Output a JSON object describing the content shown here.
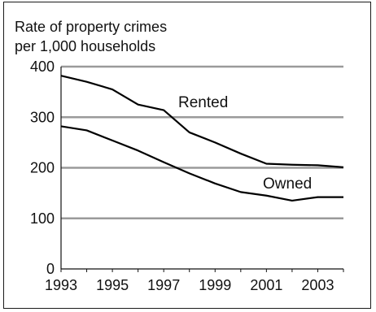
{
  "chart_data": {
    "type": "line",
    "title_lines": [
      "Rate of property crimes",
      "per 1,000 households"
    ],
    "xlabel": "",
    "ylabel": "",
    "x": [
      1993,
      1994,
      1995,
      1996,
      1997,
      1998,
      1999,
      2000,
      2001,
      2002,
      2003,
      2004
    ],
    "xtick_labels": [
      "1993",
      "1995",
      "1997",
      "1999",
      "2001",
      "2003"
    ],
    "xtick_values": [
      1993,
      1995,
      1997,
      1999,
      2001,
      2003
    ],
    "ytick_labels": [
      "0",
      "100",
      "200",
      "300",
      "400"
    ],
    "ytick_values": [
      0,
      100,
      200,
      300,
      400
    ],
    "xlim": [
      1993,
      2004
    ],
    "ylim": [
      0,
      400
    ],
    "grid": "horizontal",
    "series": [
      {
        "name": "Rented",
        "values": [
          382,
          370,
          355,
          325,
          314,
          270,
          250,
          228,
          208,
          206,
          205,
          201
        ],
        "color": "#000000"
      },
      {
        "name": "Owned",
        "values": [
          282,
          274,
          254,
          234,
          211,
          189,
          169,
          152,
          145,
          135,
          142,
          142
        ],
        "color": "#000000"
      }
    ]
  }
}
